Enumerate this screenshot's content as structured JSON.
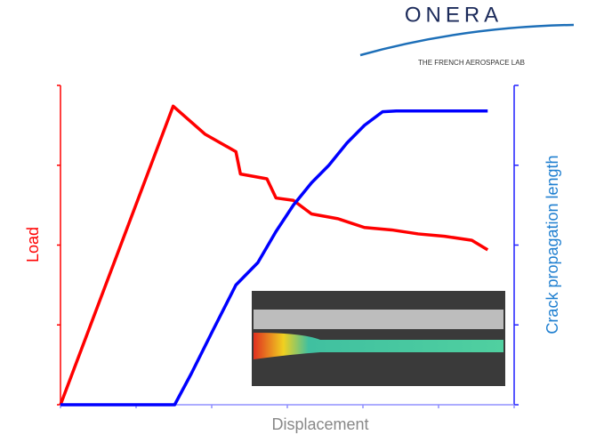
{
  "logo": {
    "name": "ONERA",
    "tagline": "THE FRENCH AEROSPACE LAB"
  },
  "chart_data": {
    "type": "line",
    "xlabel": "Displacement",
    "ylabel": "Load",
    "y2label": "Crack propagation length",
    "xlim": [
      0,
      6
    ],
    "xticks": [
      0,
      1,
      2,
      3,
      4,
      5,
      6
    ],
    "ylim": [
      0,
      4
    ],
    "yticks": [
      0,
      1,
      2,
      3,
      4
    ],
    "y2lim": [
      0,
      4
    ],
    "y2ticks": [
      0,
      1,
      2,
      3,
      4
    ],
    "series": [
      {
        "color": "#ff0000",
        "x": [
          0,
          1.49,
          1.91,
          2.32,
          2.38,
          2.73,
          2.85,
          3.08,
          3.32,
          3.67,
          4.02,
          4.38,
          4.73,
          5.08,
          5.44,
          5.65
        ],
        "values": [
          0,
          3.74,
          3.39,
          3.17,
          2.89,
          2.83,
          2.59,
          2.56,
          2.39,
          2.33,
          2.22,
          2.19,
          2.14,
          2.11,
          2.06,
          1.94
        ]
      },
      {
        "color": "#0000ff",
        "axis": "y2",
        "x": [
          0,
          1.51,
          1.73,
          2.02,
          2.32,
          2.61,
          2.85,
          3.08,
          3.32,
          3.55,
          3.79,
          4.02,
          4.26,
          4.44,
          5.65
        ],
        "values": [
          0,
          0,
          0.39,
          0.94,
          1.5,
          1.78,
          2.17,
          2.5,
          2.78,
          3.0,
          3.28,
          3.5,
          3.67,
          3.68,
          3.68
        ]
      }
    ]
  }
}
